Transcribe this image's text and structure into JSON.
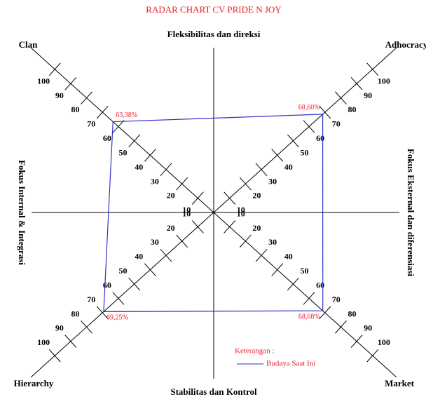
{
  "chart_data": {
    "type": "radar",
    "title": "RADAR CHART CV PRIDE N JOY",
    "top_label": "Fleksibilitas dan direksi",
    "bottom_label": "Stabilitas dan Kontrol",
    "left_label": "Fokus Internal & Integrasi",
    "right_label": "Fokus Eksternal dan diferensiasi",
    "categories": [
      "Clan",
      "Adhocracy",
      "Market",
      "Hierarchy"
    ],
    "series": [
      {
        "name": "Budaya Saat Ini",
        "color": "#3333cc",
        "values": [
          63.38,
          68.6,
          68.68,
          69.25
        ],
        "value_labels": [
          "63,38%",
          "68,60%",
          "68,68%",
          "69,25%"
        ]
      }
    ],
    "rlim": [
      0,
      115
    ],
    "rticks": [
      10,
      20,
      30,
      40,
      50,
      60,
      70,
      80,
      90,
      100
    ],
    "legend_title": "Keterangan :",
    "legend": "bottom-right"
  }
}
